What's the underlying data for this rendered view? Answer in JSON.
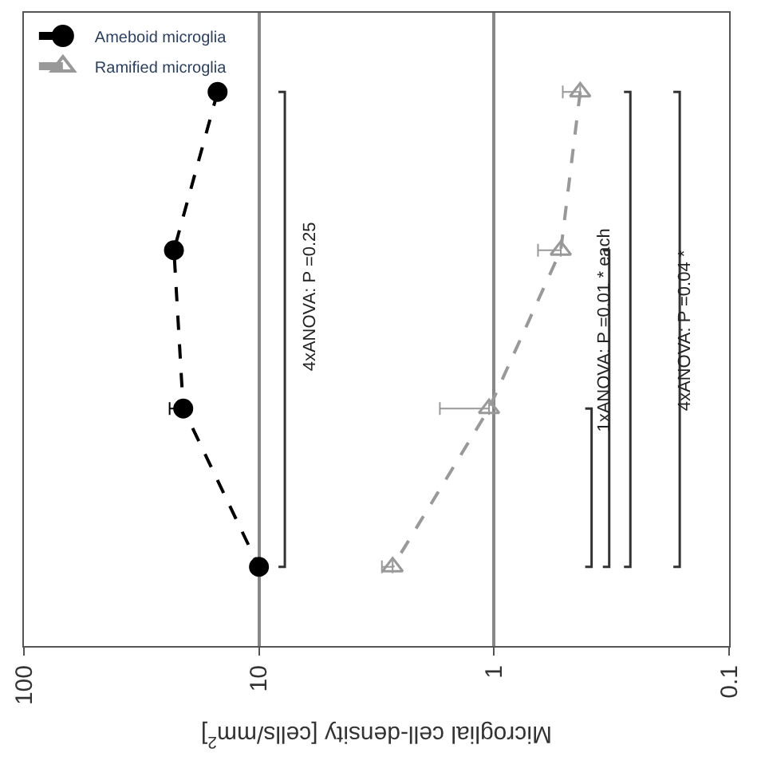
{
  "chart_data": {
    "type": "line",
    "orientation": "horizontal",
    "xlabel": "Microglial cell-density [cells/mm$^{2}$]",
    "categories": [
      null,
      null,
      null,
      null
    ],
    "log": "x",
    "xlim": [
      100,
      0.1
    ],
    "xticks": [
      100,
      10,
      1,
      0.1
    ],
    "grid": "x",
    "legend": "top left",
    "line_style": "dashed",
    "series": [
      {
        "name": "Ameboid microglia",
        "color": "#000000",
        "marker": "circle",
        "values": [
          15,
          23,
          21,
          10
        ],
        "errors": [
          null,
          null,
          [
            21,
            24
          ],
          null
        ]
      },
      {
        "name": "Ramified microglia",
        "color": "#999999",
        "marker": "triangle",
        "values": [
          0.43,
          0.52,
          1.05,
          2.7
        ],
        "errors": [
          [
            0.43,
            0.51
          ],
          [
            0.52,
            0.65
          ],
          [
            1.05,
            1.7
          ],
          [
            2.7,
            3.0
          ]
        ]
      }
    ],
    "annotations": [
      "4xANOVA: P =0.25",
      "1xANOVA: P =0.01 * each",
      "4xANOVA: P =0.04 *"
    ]
  }
}
